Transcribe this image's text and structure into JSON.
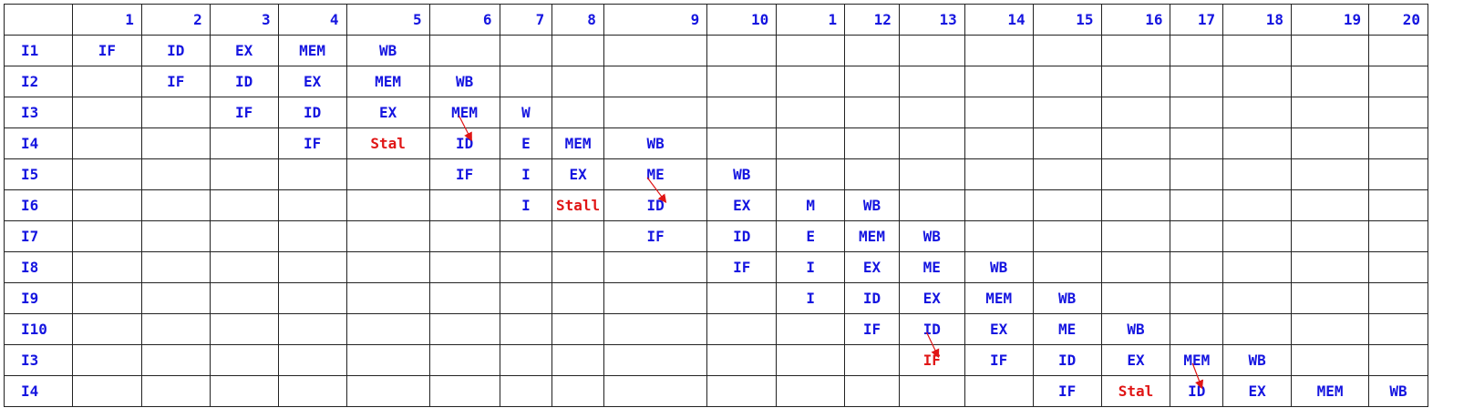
{
  "colors": {
    "text": "#1515e0",
    "stall": "#e01515",
    "arrow": "#e01515",
    "grid": "#222222"
  },
  "header": [
    "",
    "1",
    "2",
    "3",
    "4",
    "5",
    "6",
    "7",
    "8",
    "9",
    "10",
    "1",
    "12",
    "13",
    "14",
    "15",
    "16",
    "17",
    "18",
    "19",
    "20"
  ],
  "rows": [
    {
      "label": "I1",
      "cells": [
        "IF",
        "ID",
        "EX",
        "MEM",
        "WB",
        "",
        "",
        "",
        "",
        "",
        "",
        "",
        "",
        "",
        "",
        "",
        "",
        "",
        "",
        ""
      ]
    },
    {
      "label": "I2",
      "cells": [
        "",
        "IF",
        "ID",
        "EX",
        "MEM",
        "WB",
        "",
        "",
        "",
        "",
        "",
        "",
        "",
        "",
        "",
        "",
        "",
        "",
        "",
        ""
      ]
    },
    {
      "label": "I3",
      "cells": [
        "",
        "",
        "IF",
        "ID",
        "EX",
        "MEM",
        "W",
        "",
        "",
        "",
        "",
        "",
        "",
        "",
        "",
        "",
        "",
        "",
        "",
        ""
      ]
    },
    {
      "label": "I4",
      "cells": [
        "",
        "",
        "",
        "IF",
        "Stal",
        "ID",
        "E",
        "MEM",
        "WB",
        "",
        "",
        "",
        "",
        "",
        "",
        "",
        "",
        "",
        "",
        ""
      ]
    },
    {
      "label": "I5",
      "cells": [
        "",
        "",
        "",
        "",
        "",
        "IF",
        "I",
        "EX",
        "ME",
        "WB",
        "",
        "",
        "",
        "",
        "",
        "",
        "",
        "",
        "",
        ""
      ]
    },
    {
      "label": "I6",
      "cells": [
        "",
        "",
        "",
        "",
        "",
        "",
        "I",
        "Stall",
        "ID",
        "EX",
        "M",
        "WB",
        "",
        "",
        "",
        "",
        "",
        "",
        "",
        ""
      ]
    },
    {
      "label": "I7",
      "cells": [
        "",
        "",
        "",
        "",
        "",
        "",
        "",
        "",
        "IF",
        "ID",
        "E",
        "MEM",
        "WB",
        "",
        "",
        "",
        "",
        "",
        "",
        ""
      ]
    },
    {
      "label": "I8",
      "cells": [
        "",
        "",
        "",
        "",
        "",
        "",
        "",
        "",
        "",
        "IF",
        "I",
        "EX",
        "ME",
        "WB",
        "",
        "",
        "",
        "",
        "",
        ""
      ]
    },
    {
      "label": "I9",
      "cells": [
        "",
        "",
        "",
        "",
        "",
        "",
        "",
        "",
        "",
        "",
        "I",
        "ID",
        "EX",
        "MEM",
        "WB",
        "",
        "",
        "",
        "",
        ""
      ]
    },
    {
      "label": "I10",
      "cells": [
        "",
        "",
        "",
        "",
        "",
        "",
        "",
        "",
        "",
        "",
        "",
        "IF",
        "ID",
        "EX",
        "ME",
        "WB",
        "",
        "",
        "",
        ""
      ]
    },
    {
      "label": "I3",
      "cells": [
        "",
        "",
        "",
        "",
        "",
        "",
        "",
        "",
        "",
        "",
        "",
        "",
        "IF",
        "IF",
        "ID",
        "EX",
        "MEM",
        "WB",
        "",
        ""
      ]
    },
    {
      "label": "I4",
      "cells": [
        "",
        "",
        "",
        "",
        "",
        "",
        "",
        "",
        "",
        "",
        "",
        "",
        "",
        "",
        "IF",
        "Stal",
        "ID",
        "EX",
        "MEM",
        "WB"
      ]
    }
  ],
  "stall_cells": [
    [
      3,
      4
    ],
    [
      5,
      7
    ],
    [
      10,
      12
    ],
    [
      11,
      15
    ]
  ],
  "arrows": [
    {
      "from": [
        2,
        5
      ],
      "to": [
        3,
        5
      ]
    },
    {
      "from": [
        4,
        8
      ],
      "to": [
        5,
        8
      ]
    },
    {
      "from": [
        9,
        12
      ],
      "to": [
        10,
        12
      ]
    },
    {
      "from": [
        10,
        16
      ],
      "to": [
        11,
        16
      ]
    }
  ]
}
